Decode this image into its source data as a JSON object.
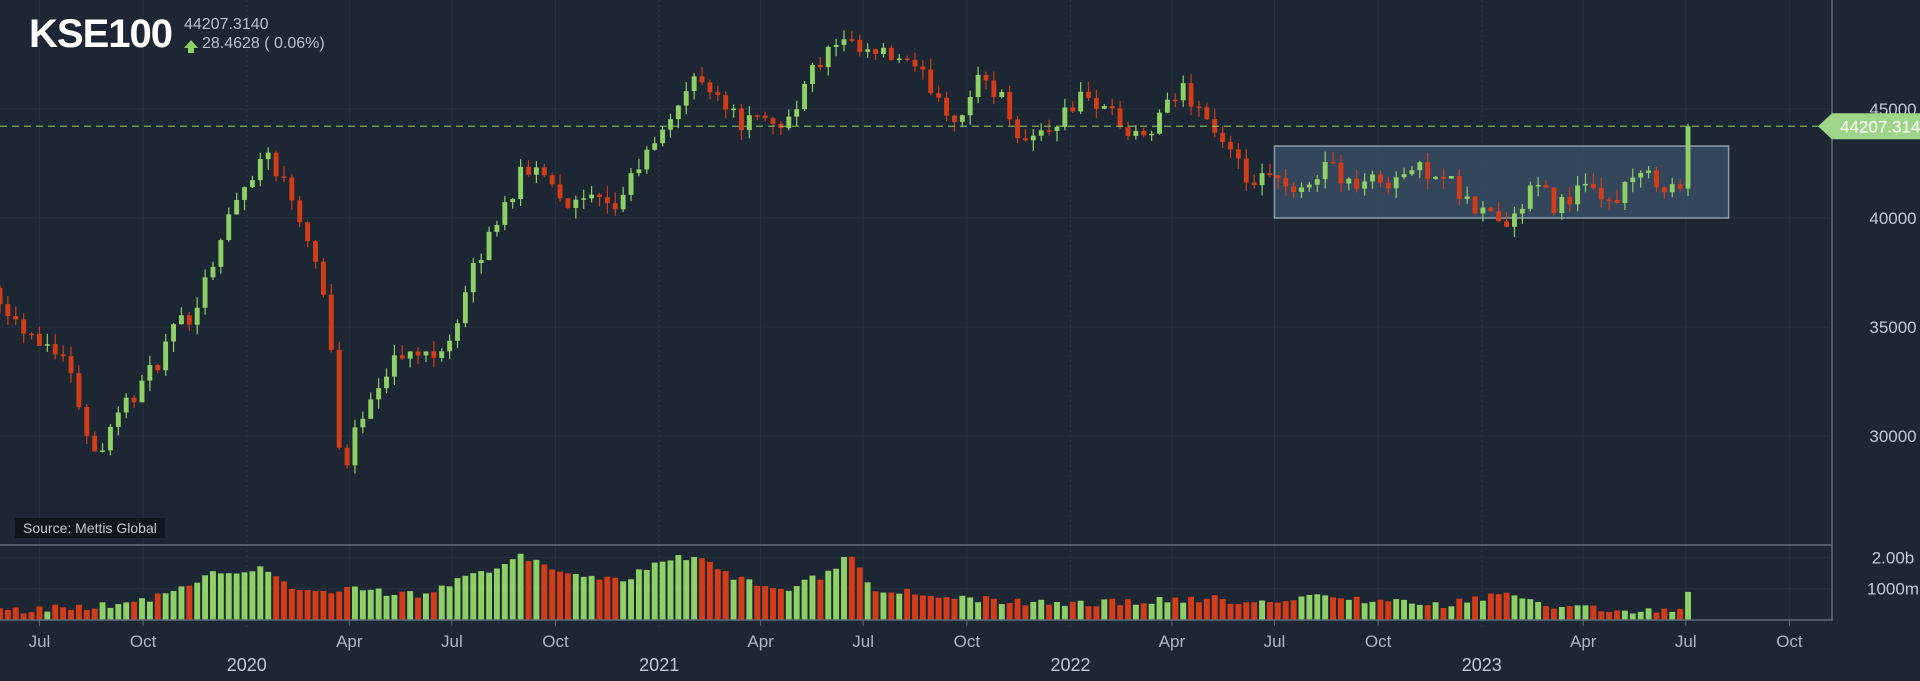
{
  "header": {
    "title": "KSE100",
    "last_price": "44207.3140",
    "change": "28.4628 ( 0.06%)"
  },
  "source_label": "Source: Mettis Global",
  "last_price_tag": "44207.314",
  "colors": {
    "up": "#8ed066",
    "down": "#d23c18",
    "background": "#1c2733",
    "box": "#3b5269"
  },
  "chart_data": [
    {
      "type": "candlestick",
      "title": "KSE100",
      "ylim": [
        25000,
        50000
      ],
      "y_ticks": [
        30000,
        35000,
        40000,
        45000
      ],
      "y_tick_labels": [
        "30000",
        "35000",
        "40000",
        "45000"
      ],
      "x_range": [
        "2019-05-27",
        "2023-11-06"
      ],
      "x_ticks": [
        {
          "date": "2019-07-01",
          "label": "Jul"
        },
        {
          "date": "2019-10-01",
          "label": "Oct"
        },
        {
          "date": "2020-04-01",
          "label": "Apr"
        },
        {
          "date": "2020-07-01",
          "label": "Jul"
        },
        {
          "date": "2020-10-01",
          "label": "Oct"
        },
        {
          "date": "2021-04-01",
          "label": "Apr"
        },
        {
          "date": "2021-07-01",
          "label": "Jul"
        },
        {
          "date": "2021-10-01",
          "label": "Oct"
        },
        {
          "date": "2022-04-01",
          "label": "Apr"
        },
        {
          "date": "2022-07-01",
          "label": "Jul"
        },
        {
          "date": "2022-10-01",
          "label": "Oct"
        },
        {
          "date": "2023-04-01",
          "label": "Apr"
        },
        {
          "date": "2023-07-01",
          "label": "Jul"
        },
        {
          "date": "2023-10-01",
          "label": "Oct"
        }
      ],
      "year_labels": [
        {
          "date": "2020-01-01",
          "label": "2020"
        },
        {
          "date": "2021-01-01",
          "label": "2021"
        },
        {
          "date": "2022-01-01",
          "label": "2022"
        },
        {
          "date": "2023-01-01",
          "label": "2023"
        }
      ],
      "last_price_line": 44207.314,
      "range_box": {
        "start": "2022-07-01",
        "end": "2023-08-08",
        "low": 40000,
        "high": 43300
      },
      "close_anchors": [
        [
          "2019-05-27",
          36500
        ],
        [
          "2019-06-10",
          35300
        ],
        [
          "2019-07-01",
          34500
        ],
        [
          "2019-07-20",
          34000
        ],
        [
          "2019-08-05",
          31600
        ],
        [
          "2019-08-20",
          29000
        ],
        [
          "2019-09-05",
          31000
        ],
        [
          "2019-09-20",
          31700
        ],
        [
          "2019-10-10",
          33000
        ],
        [
          "2019-10-25",
          34500
        ],
        [
          "2019-11-15",
          35800
        ],
        [
          "2019-12-01",
          38000
        ],
        [
          "2019-12-20",
          40500
        ],
        [
          "2020-01-10",
          42500
        ],
        [
          "2020-01-20",
          43000
        ],
        [
          "2020-02-10",
          41000
        ],
        [
          "2020-03-01",
          38500
        ],
        [
          "2020-03-15",
          35000
        ],
        [
          "2020-03-25",
          28000
        ],
        [
          "2020-04-15",
          31500
        ],
        [
          "2020-05-10",
          33500
        ],
        [
          "2020-06-10",
          33800
        ],
        [
          "2020-06-30",
          34500
        ],
        [
          "2020-07-20",
          37500
        ],
        [
          "2020-08-10",
          40000
        ],
        [
          "2020-09-01",
          42000
        ],
        [
          "2020-09-20",
          42300
        ],
        [
          "2020-10-15",
          40500
        ],
        [
          "2020-11-01",
          40800
        ],
        [
          "2020-11-20",
          40200
        ],
        [
          "2020-12-15",
          42500
        ],
        [
          "2021-01-01",
          43500
        ],
        [
          "2021-01-20",
          45600
        ],
        [
          "2021-02-05",
          46400
        ],
        [
          "2021-02-20",
          46000
        ],
        [
          "2021-03-10",
          44500
        ],
        [
          "2021-04-01",
          44300
        ],
        [
          "2021-04-25",
          44500
        ],
        [
          "2021-05-20",
          47000
        ],
        [
          "2021-06-10",
          48000
        ],
        [
          "2021-07-01",
          47500
        ],
        [
          "2021-08-01",
          47300
        ],
        [
          "2021-09-01",
          46000
        ],
        [
          "2021-09-20",
          44500
        ],
        [
          "2021-10-15",
          46500
        ],
        [
          "2021-11-01",
          45500
        ],
        [
          "2021-11-20",
          43500
        ],
        [
          "2021-12-15",
          44200
        ],
        [
          "2022-01-10",
          45500
        ],
        [
          "2022-02-01",
          45200
        ],
        [
          "2022-02-25",
          43500
        ],
        [
          "2022-03-15",
          44000
        ],
        [
          "2022-04-10",
          46000
        ],
        [
          "2022-04-30",
          44800
        ],
        [
          "2022-05-20",
          43000
        ],
        [
          "2022-06-10",
          41500
        ],
        [
          "2022-07-01",
          41800
        ],
        [
          "2022-07-20",
          40800
        ],
        [
          "2022-08-15",
          42600
        ],
        [
          "2022-09-10",
          41500
        ],
        [
          "2022-10-10",
          41800
        ],
        [
          "2022-11-01",
          42200
        ],
        [
          "2022-11-25",
          42200
        ],
        [
          "2022-12-20",
          40500
        ],
        [
          "2023-01-10",
          40200
        ],
        [
          "2023-01-25",
          39500
        ],
        [
          "2023-02-15",
          41500
        ],
        [
          "2023-03-10",
          40500
        ],
        [
          "2023-03-30",
          41500
        ],
        [
          "2023-04-20",
          40500
        ],
        [
          "2023-05-15",
          41800
        ],
        [
          "2023-06-05",
          41800
        ],
        [
          "2023-06-25",
          41200
        ],
        [
          "2023-06-30",
          41450
        ],
        [
          "2023-07-03",
          44207.314
        ]
      ],
      "volume_panel": {
        "ticks": [
          {
            "value": 1000000000,
            "label": "1000m"
          },
          {
            "value": 2000000000,
            "label": "2.00b"
          }
        ],
        "ymax": 2300000000,
        "anchors": [
          [
            "2019-05-27",
            0.3
          ],
          [
            "2019-08-01",
            0.4
          ],
          [
            "2019-10-01",
            0.6
          ],
          [
            "2019-12-01",
            1.5
          ],
          [
            "2020-01-15",
            1.7
          ],
          [
            "2020-02-15",
            0.9
          ],
          [
            "2020-04-01",
            1.0
          ],
          [
            "2020-06-01",
            0.8
          ],
          [
            "2020-08-01",
            1.6
          ],
          [
            "2020-09-01",
            2.1
          ],
          [
            "2020-10-01",
            1.5
          ],
          [
            "2020-12-01",
            1.2
          ],
          [
            "2021-01-01",
            1.9
          ],
          [
            "2021-02-01",
            2.0
          ],
          [
            "2021-03-01",
            1.5
          ],
          [
            "2021-04-15",
            0.9
          ],
          [
            "2021-06-01",
            1.5
          ],
          [
            "2021-06-20",
            2.2
          ],
          [
            "2021-07-10",
            1.0
          ],
          [
            "2021-09-01",
            0.8
          ],
          [
            "2021-11-01",
            0.6
          ],
          [
            "2022-01-01",
            0.5
          ],
          [
            "2022-03-01",
            0.6
          ],
          [
            "2022-05-01",
            0.7
          ],
          [
            "2022-07-01",
            0.5
          ],
          [
            "2022-08-15",
            0.8
          ],
          [
            "2022-10-01",
            0.6
          ],
          [
            "2022-12-01",
            0.5
          ],
          [
            "2023-01-20",
            0.8
          ],
          [
            "2023-03-01",
            0.5
          ],
          [
            "2023-05-01",
            0.3
          ],
          [
            "2023-06-25",
            0.35
          ],
          [
            "2023-07-03",
            0.9
          ]
        ]
      }
    }
  ]
}
